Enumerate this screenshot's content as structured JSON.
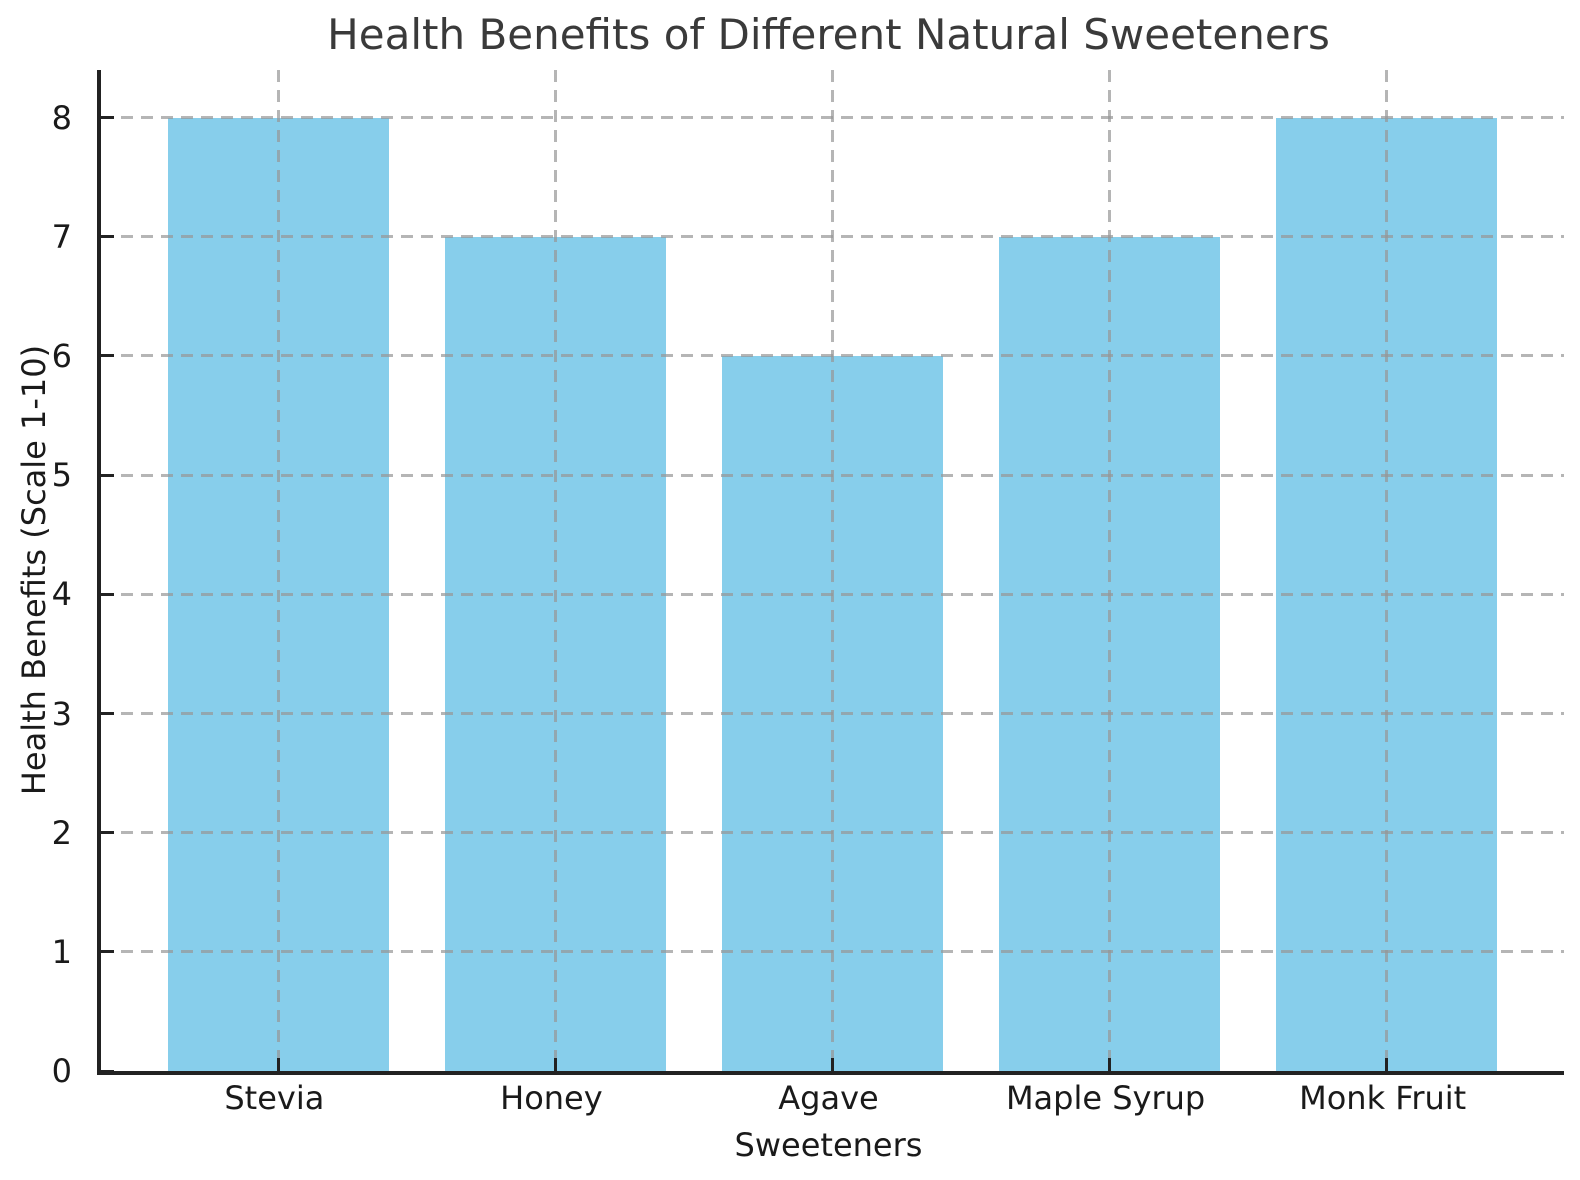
{
  "chart_data": {
    "type": "bar",
    "title": "Health Benefits of Different Natural Sweeteners",
    "categories": [
      "Stevia",
      "Honey",
      "Agave",
      "Maple Syrup",
      "Monk Fruit"
    ],
    "values": [
      8,
      7,
      6,
      7,
      8
    ],
    "xlabel": "Sweeteners",
    "ylabel": "Health Benefits (Scale 1-10)",
    "ylim": [
      0,
      8.4
    ],
    "yticks": [
      0,
      1,
      2,
      3,
      4,
      5,
      6,
      7,
      8
    ],
    "bar_color": "#87CEEB",
    "grid": true,
    "grid_style": "dashed",
    "grid_color": "#b0b0b0",
    "grid_on_top": true,
    "legend": "none"
  }
}
